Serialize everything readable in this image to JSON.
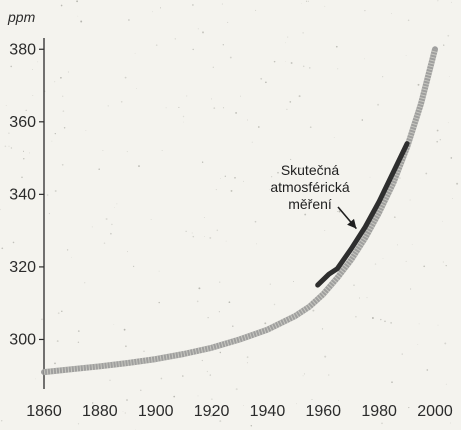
{
  "chart_data": {
    "type": "line",
    "title": "",
    "xlabel": "",
    "ylabel": "ppm",
    "xlim": [
      1860,
      2000
    ],
    "ylim": [
      288,
      382
    ],
    "grid": false,
    "x_ticks": [
      1860,
      1880,
      1900,
      1920,
      1940,
      1960,
      1980,
      2000
    ],
    "y_ticks": [
      300,
      320,
      340,
      360,
      380
    ],
    "series": [
      {
        "name": "",
        "style": "stippled",
        "color": "#8f8f8f",
        "x": [
          1860,
          1870,
          1880,
          1890,
          1900,
          1910,
          1920,
          1930,
          1940,
          1950,
          1955,
          1960,
          1965,
          1970,
          1975,
          1980,
          1985,
          1990,
          1995,
          2000
        ],
        "y": [
          291,
          291.8,
          292.6,
          293.5,
          294.6,
          296,
          297.7,
          300,
          302.7,
          306.5,
          309,
          312.5,
          317,
          322,
          328,
          335,
          343,
          353,
          365,
          380
        ]
      },
      {
        "name": "",
        "style": "solid",
        "color": "#2e2e2e",
        "x": [
          1958,
          1962,
          1965,
          1970,
          1975,
          1980,
          1985,
          1990
        ],
        "y": [
          315,
          318,
          319.5,
          325,
          331,
          338,
          346,
          354
        ]
      }
    ],
    "annotations": [
      {
        "lines": [
          "Skutečná",
          "atmosférická",
          "měření"
        ],
        "points_to": {
          "x": 1974,
          "y": 330
        }
      }
    ]
  }
}
